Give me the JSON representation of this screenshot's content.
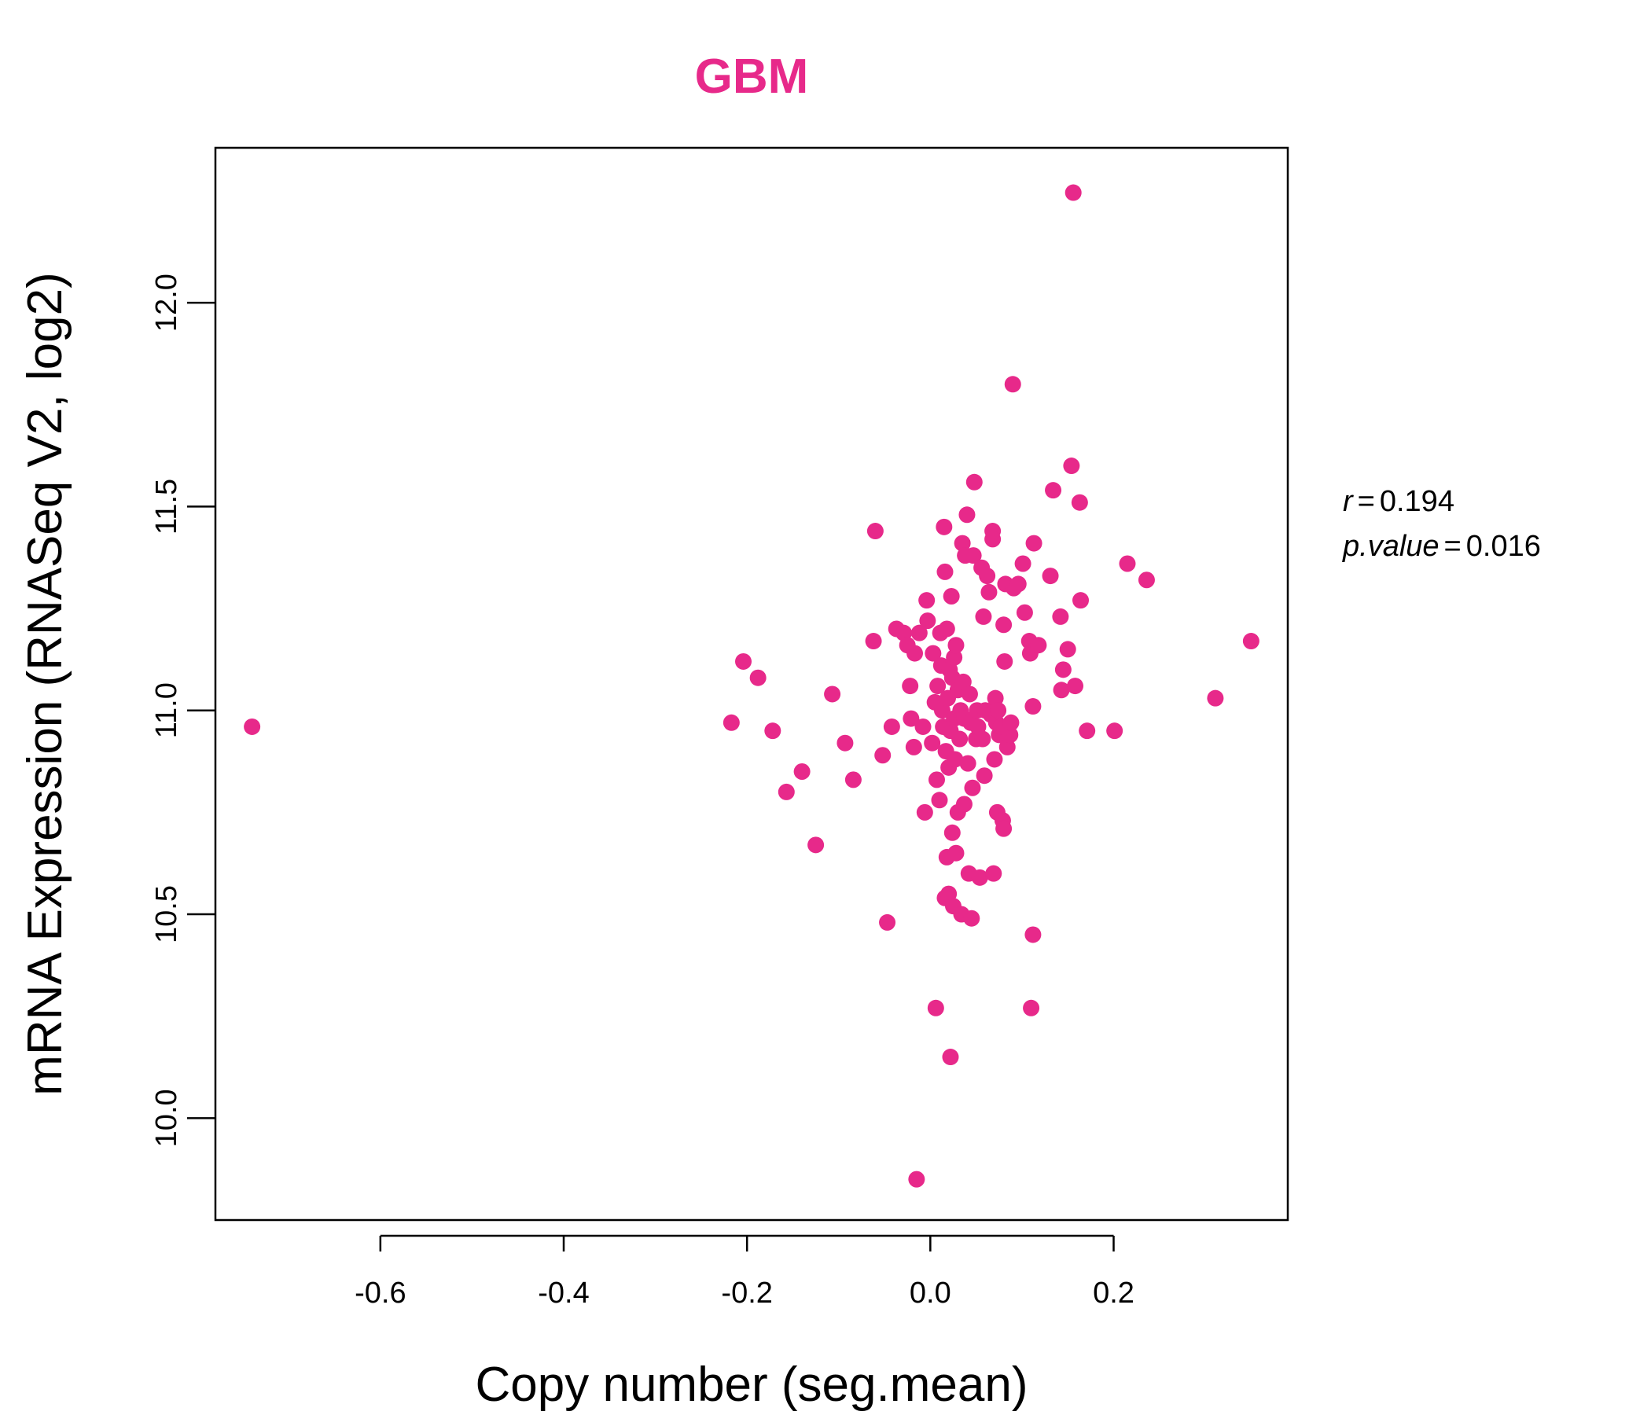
{
  "chart_data": {
    "type": "scatter",
    "title": "GBM",
    "xlabel": "Copy number (seg.mean)",
    "ylabel": "mRNA Expression (RNASeq V2, log2)",
    "xlim": [
      -0.78,
      0.39
    ],
    "ylim": [
      9.75,
      12.38
    ],
    "x_ticks": [
      -0.6,
      -0.4,
      -0.2,
      0.0,
      0.2
    ],
    "x_tick_labels": [
      "-0.6",
      "-0.4",
      "-0.2",
      "0.0",
      "0.2"
    ],
    "y_ticks": [
      10.0,
      10.5,
      11.0,
      11.5,
      12.0
    ],
    "y_tick_labels": [
      "10.0",
      "10.5",
      "11.0",
      "11.5",
      "12.0"
    ],
    "grid": false,
    "point_color": "#E7298A",
    "stats": {
      "r_label": "r",
      "r_value": "0.194",
      "p_label": "p.value",
      "p_value": "0.016"
    },
    "points": [
      [
        -0.74,
        10.96
      ],
      [
        -0.217,
        10.97
      ],
      [
        -0.204,
        11.12
      ],
      [
        -0.188,
        11.08
      ],
      [
        -0.172,
        10.95
      ],
      [
        -0.157,
        10.8
      ],
      [
        -0.14,
        10.85
      ],
      [
        -0.125,
        10.67
      ],
      [
        -0.107,
        11.04
      ],
      [
        -0.093,
        10.92
      ],
      [
        -0.084,
        10.83
      ],
      [
        -0.062,
        11.17
      ],
      [
        -0.06,
        11.44
      ],
      [
        -0.052,
        10.89
      ],
      [
        -0.047,
        10.48
      ],
      [
        -0.042,
        10.96
      ],
      [
        -0.037,
        11.2
      ],
      [
        -0.029,
        11.19
      ],
      [
        -0.025,
        11.16
      ],
      [
        -0.022,
        11.06
      ],
      [
        -0.021,
        10.98
      ],
      [
        -0.018,
        10.91
      ],
      [
        -0.017,
        11.14
      ],
      [
        -0.015,
        9.85
      ],
      [
        -0.012,
        11.19
      ],
      [
        -0.008,
        10.96
      ],
      [
        -0.006,
        10.75
      ],
      [
        -0.004,
        11.27
      ],
      [
        -0.003,
        11.22
      ],
      [
        0.002,
        10.92
      ],
      [
        0.003,
        11.14
      ],
      [
        0.005,
        11.02
      ],
      [
        0.006,
        10.27
      ],
      [
        0.007,
        10.83
      ],
      [
        0.008,
        11.06
      ],
      [
        0.01,
        10.78
      ],
      [
        0.011,
        11.19
      ],
      [
        0.012,
        11.11
      ],
      [
        0.013,
        11.0
      ],
      [
        0.014,
        10.96
      ],
      [
        0.015,
        11.45
      ],
      [
        0.016,
        11.34
      ],
      [
        0.016,
        10.54
      ],
      [
        0.017,
        10.9
      ],
      [
        0.018,
        11.2
      ],
      [
        0.018,
        10.64
      ],
      [
        0.019,
        11.03
      ],
      [
        0.02,
        10.86
      ],
      [
        0.02,
        10.55
      ],
      [
        0.021,
        11.1
      ],
      [
        0.022,
        10.95
      ],
      [
        0.022,
        10.15
      ],
      [
        0.023,
        11.28
      ],
      [
        0.024,
        10.7
      ],
      [
        0.024,
        11.08
      ],
      [
        0.025,
        10.52
      ],
      [
        0.026,
        10.98
      ],
      [
        0.026,
        11.13
      ],
      [
        0.027,
        10.88
      ],
      [
        0.028,
        11.16
      ],
      [
        0.028,
        10.65
      ],
      [
        0.03,
        10.75
      ],
      [
        0.03,
        11.05
      ],
      [
        0.032,
        10.93
      ],
      [
        0.033,
        11.0
      ],
      [
        0.034,
        10.5
      ],
      [
        0.035,
        11.41
      ],
      [
        0.036,
        11.07
      ],
      [
        0.037,
        10.98
      ],
      [
        0.037,
        10.77
      ],
      [
        0.038,
        11.38
      ],
      [
        0.04,
        11.48
      ],
      [
        0.041,
        10.87
      ],
      [
        0.042,
        10.6
      ],
      [
        0.043,
        11.04
      ],
      [
        0.044,
        10.97
      ],
      [
        0.045,
        10.49
      ],
      [
        0.046,
        10.81
      ],
      [
        0.047,
        11.38
      ],
      [
        0.048,
        11.56
      ],
      [
        0.05,
        10.93
      ],
      [
        0.051,
        11.0
      ],
      [
        0.052,
        10.96
      ],
      [
        0.054,
        10.59
      ],
      [
        0.056,
        11.35
      ],
      [
        0.057,
        10.93
      ],
      [
        0.058,
        11.23
      ],
      [
        0.059,
        10.84
      ],
      [
        0.06,
        11.0
      ],
      [
        0.062,
        11.33
      ],
      [
        0.064,
        11.29
      ],
      [
        0.066,
        10.99
      ],
      [
        0.068,
        11.44
      ],
      [
        0.068,
        11.42
      ],
      [
        0.069,
        10.6
      ],
      [
        0.07,
        10.88
      ],
      [
        0.071,
        11.03
      ],
      [
        0.072,
        10.97
      ],
      [
        0.073,
        10.75
      ],
      [
        0.074,
        11.0
      ],
      [
        0.075,
        10.94
      ],
      [
        0.077,
        10.96
      ],
      [
        0.079,
        10.73
      ],
      [
        0.08,
        11.21
      ],
      [
        0.08,
        10.71
      ],
      [
        0.081,
        11.12
      ],
      [
        0.082,
        11.31
      ],
      [
        0.084,
        10.91
      ],
      [
        0.087,
        10.94
      ],
      [
        0.088,
        10.97
      ],
      [
        0.09,
        11.8
      ],
      [
        0.091,
        11.3
      ],
      [
        0.096,
        11.31
      ],
      [
        0.101,
        11.36
      ],
      [
        0.103,
        11.24
      ],
      [
        0.108,
        11.17
      ],
      [
        0.109,
        11.14
      ],
      [
        0.11,
        10.27
      ],
      [
        0.112,
        11.01
      ],
      [
        0.112,
        10.45
      ],
      [
        0.113,
        11.41
      ],
      [
        0.118,
        11.16
      ],
      [
        0.131,
        11.33
      ],
      [
        0.134,
        11.54
      ],
      [
        0.142,
        11.23
      ],
      [
        0.143,
        11.05
      ],
      [
        0.145,
        11.1
      ],
      [
        0.15,
        11.15
      ],
      [
        0.154,
        11.6
      ],
      [
        0.156,
        12.27
      ],
      [
        0.158,
        11.06
      ],
      [
        0.163,
        11.51
      ],
      [
        0.164,
        11.27
      ],
      [
        0.171,
        10.95
      ],
      [
        0.201,
        10.95
      ],
      [
        0.215,
        11.36
      ],
      [
        0.236,
        11.32
      ],
      [
        0.311,
        11.03
      ],
      [
        0.35,
        11.17
      ]
    ]
  }
}
